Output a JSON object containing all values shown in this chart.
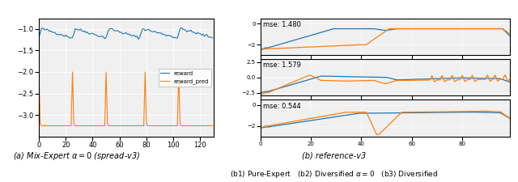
{
  "left_ylim": [
    -3.5,
    -0.75
  ],
  "left_xlim": [
    0,
    130
  ],
  "left_yticks": [
    -1.0,
    -1.5,
    -2.0,
    -2.5,
    -3.0
  ],
  "left_xticks": [
    0,
    20,
    40,
    60,
    80,
    100,
    120
  ],
  "reward_color": "#1f77b4",
  "reward_pred_color": "#ff7f0e",
  "caption_a": "(a) Mix-Expert $\\alpha = 0$ (spread-v3)",
  "caption_b": "(b) reference-v3",
  "caption_b1b2b3": "(b1) Pure-Expert   (b2) Diversified $\\alpha = 0$   (b3) Diversified",
  "mse1": "mse: 1.480",
  "mse2": "mse: 1.579",
  "mse3": "mse: 0.544",
  "fig_bg": "#ffffff",
  "subplot_bg": "#f0f0f0"
}
